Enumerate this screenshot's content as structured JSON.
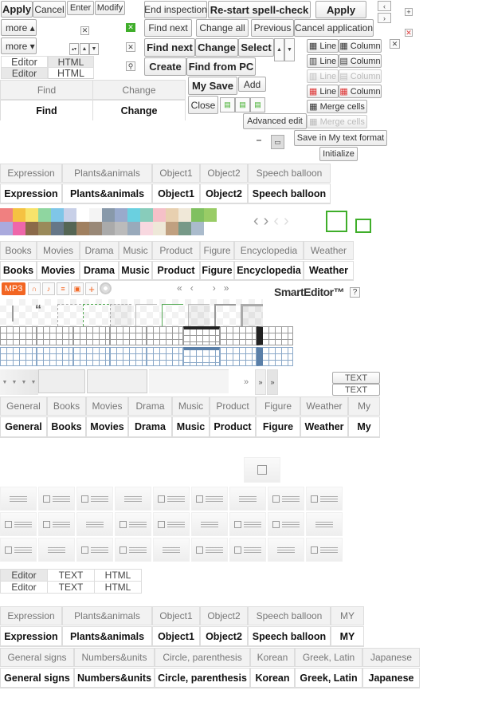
{
  "top_buttons": {
    "apply": "Apply",
    "cancel": "Cancel",
    "enter": "Enter",
    "modify": "Modify",
    "more_up": "more ▴",
    "more_down": "more ▾"
  },
  "mode_tabs": {
    "editor": "Editor",
    "html": "HTML",
    "text": "TEXT"
  },
  "find_tabs": {
    "find": "Find",
    "change": "Change"
  },
  "spell": {
    "end_inspection": "End inspection",
    "restart": "Re-start spell-check",
    "apply": "Apply",
    "find_next": "Find next",
    "change_all": "Change all",
    "previous": "Previous",
    "cancel_application": "Cancel application",
    "find_next_bold": "Find next",
    "change": "Change",
    "select": "Select",
    "create": "Create",
    "find_from_pc": "Find from PC",
    "my_save": "My Save",
    "add": "Add",
    "close": "Close",
    "advanced_edit": "Advanced edit",
    "save_my_text_format": "Save in My text format",
    "initialize": "Initialize"
  },
  "table_buttons": {
    "line": "Line",
    "column": "Column",
    "merge_cells": "Merge cells"
  },
  "sticker_tabs": [
    "Expression",
    "Plants&animals",
    "Object1",
    "Object2",
    "Speech balloon"
  ],
  "sticker_tabs_my": [
    "Expression",
    "Plants&animals",
    "Object1",
    "Object2",
    "Speech balloon",
    "MY"
  ],
  "category_tabs": [
    "Books",
    "Movies",
    "Drama",
    "Music",
    "Product",
    "Figure",
    "Encyclopedia",
    "Weather"
  ],
  "general_tabs": [
    "General",
    "Books",
    "Movies",
    "Drama",
    "Music",
    "Product",
    "Figure",
    "Weather",
    "My"
  ],
  "symbol_tabs": [
    "General signs",
    "Numbers&units",
    "Circle, parenthesis",
    "Korean",
    "Greek, Latin",
    "Japanese"
  ],
  "media": {
    "mp3": "MP3",
    "brand": "SmartEditor™",
    "help": "?",
    "nav": [
      "«",
      "‹",
      "›",
      "»"
    ],
    "more": "»"
  },
  "palette": [
    "#f08080",
    "#f5c242",
    "#f7e36b",
    "#8fd6a0",
    "#7fc6e8",
    "#c8d0e8",
    "#ffffff",
    "#f4f4f4",
    "#8899aa",
    "#99aacc",
    "#6ad0e0",
    "#88ccbb",
    "#f5c0c8",
    "#e8d0b0",
    "#f0e8d8",
    "#80c060",
    "#99cc66",
    "#aaaadd",
    "#ee66aa",
    "#8b6a4a",
    "#9a8a5a",
    "#667788",
    "#556655",
    "#a08060",
    "#998877",
    "#aaaaaa",
    "#bbbbbb",
    "#99aabb",
    "#f8d8e0",
    "#eee8d8",
    "#c0a080",
    "#779988",
    "#aabbcc",
    "#ffffff"
  ],
  "accent": {
    "green": "#44aa22",
    "orange": "#f26522",
    "red": "#e04040",
    "blue_table": "#5a7fa8"
  }
}
